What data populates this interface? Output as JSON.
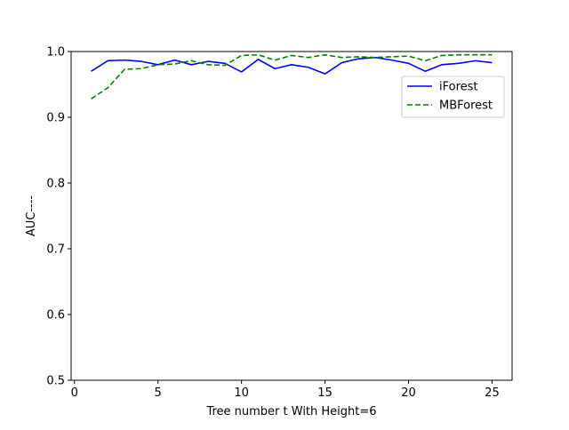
{
  "chart_data": {
    "type": "line",
    "title": "",
    "xlabel": "Tree number t With Height=6",
    "ylabel": "AUC----",
    "xlim": [
      -0.2,
      26.2
    ],
    "ylim": [
      0.5,
      1.0
    ],
    "xticks": [
      0,
      5,
      10,
      15,
      20,
      25
    ],
    "yticks": [
      0.5,
      0.6,
      0.7,
      0.8,
      0.9,
      1.0
    ],
    "xtick_labels": [
      "0",
      "5",
      "10",
      "15",
      "20",
      "25"
    ],
    "ytick_labels": [
      "0.5",
      "0.6",
      "0.7",
      "0.8",
      "0.9",
      "1.0"
    ],
    "grid": false,
    "legend_position": "upper-right",
    "x": [
      1,
      2,
      3,
      4,
      5,
      6,
      7,
      8,
      9,
      10,
      11,
      12,
      13,
      14,
      15,
      16,
      17,
      18,
      19,
      20,
      21,
      22,
      23,
      24,
      25
    ],
    "series": [
      {
        "name": "iForest",
        "color": "#0000ff",
        "style": "solid",
        "values": [
          0.97,
          0.986,
          0.987,
          0.985,
          0.98,
          0.987,
          0.98,
          0.985,
          0.982,
          0.969,
          0.988,
          0.974,
          0.98,
          0.976,
          0.966,
          0.983,
          0.989,
          0.991,
          0.987,
          0.982,
          0.97,
          0.98,
          0.982,
          0.986,
          0.983
        ]
      },
      {
        "name": "MBForest",
        "color": "#008000",
        "style": "dashed",
        "values": [
          0.928,
          0.945,
          0.973,
          0.974,
          0.98,
          0.981,
          0.986,
          0.98,
          0.979,
          0.994,
          0.995,
          0.987,
          0.994,
          0.991,
          0.995,
          0.991,
          0.992,
          0.991,
          0.992,
          0.993,
          0.986,
          0.994,
          0.995,
          0.995,
          0.995
        ]
      }
    ]
  }
}
